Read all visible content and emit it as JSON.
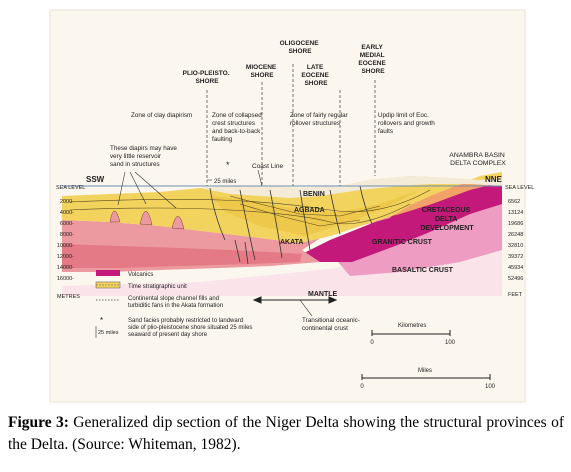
{
  "diagram": {
    "shores": {
      "plio": [
        "PLIO-PLEISTO.",
        "SHORE"
      ],
      "miocene": [
        "MIOCENE",
        "SHORE"
      ],
      "oligocene": [
        "OLIGOCENE",
        "SHORE"
      ],
      "late_eocene": [
        "LATE",
        "EOCENE",
        "SHORE"
      ],
      "early_eocene": [
        "EARLY",
        "MEDIAL",
        "EOCENE",
        "SHORE"
      ]
    },
    "zones": {
      "clay_diapirism": "Zone of clay diapirism",
      "collapsed": [
        "Zone of collapsed",
        "crest structures",
        "and back-to-back",
        "faulting"
      ],
      "rollover": [
        "Zone of fairly regular",
        "rollover structures"
      ],
      "updip": [
        "Updip limit of Eoc.",
        "rollovers and growth",
        "faults"
      ]
    },
    "diapir_note": [
      "These diapirs may have",
      "very little reservoir",
      "sand in structures"
    ],
    "coast_line": "Coast Line",
    "miles_25": "25 miles",
    "anambra": [
      "ANAMBRA BASIN",
      "DELTA COMPLEX"
    ],
    "ssw": "SSW",
    "nne": "NNE",
    "sea_level_left": "SEA LEVEL",
    "sea_level_right": "SEA LEVEL",
    "left_depths": [
      "2000-",
      "4000-",
      "6000-",
      "8000-",
      "10000-",
      "12000-",
      "14000-",
      "16000-"
    ],
    "left_unit": "METRES",
    "right_depths": [
      "6562",
      "13124",
      "19686",
      "26248",
      "32810",
      "39372",
      "45934",
      "52496"
    ],
    "right_unit": "FEET",
    "units": {
      "benin": "BENIN",
      "agbada": "AGBADA",
      "akata": "AKATA",
      "cretaceous": [
        "CRETACEOUS",
        "DELTA",
        "DEVELOPMENT"
      ],
      "granitic": "GRANITIC CRUST",
      "basaltic": "BASALTIC CRUST",
      "mantle": "MANTLE"
    },
    "legend": {
      "volcanics": "Volcanics",
      "time_unit": "Time stratigraphic unit",
      "channel": [
        "Continental slope channel fills and",
        "turbiditic fans in the Akata formation"
      ],
      "sand": [
        "Sand facies probably restricted to landward",
        "side of plio-pleistocene shore situated 25 miles",
        "seaward of present day shore"
      ],
      "sand_marker": "25 miles"
    },
    "transitional": [
      "Transitional oceanic-",
      "continental crust"
    ],
    "km_scale": {
      "label": "Kilometres",
      "ticks": [
        "0",
        "100"
      ]
    },
    "miles_scale": {
      "label": "Miles",
      "ticks": [
        "0",
        "100"
      ]
    }
  },
  "caption": {
    "label": "Figure 3:",
    "text": " Generalized dip section of the Niger Delta showing the structural provinces of the Delta. (Source: Whiteman, 1982)."
  },
  "colors": {
    "benin": "#f3ead7",
    "agbada": "#f2d35e",
    "akata": "#ec9a9f",
    "akata_dark": "#e47a86",
    "granitic": "#c2197a",
    "basaltic": "#ee9cc2",
    "mantle": "#fbe3ea",
    "cretaceous": "#f2a268",
    "background": "#fbf6ee"
  }
}
